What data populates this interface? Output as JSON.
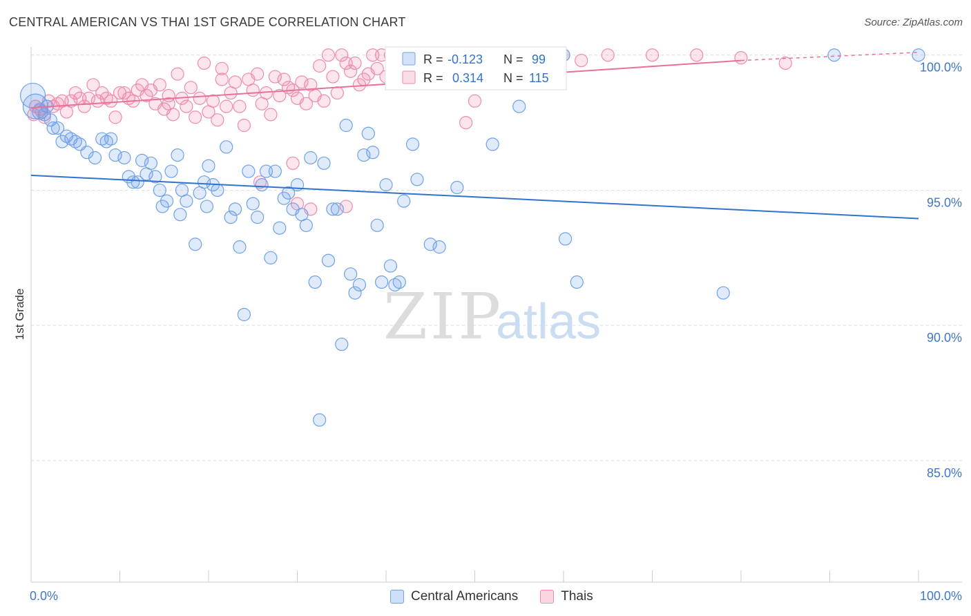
{
  "title": "CENTRAL AMERICAN VS THAI 1ST GRADE CORRELATION CHART",
  "source": "Source: ZipAtlas.com",
  "watermark": {
    "zip": "ZIP",
    "atlas": "atlas"
  },
  "colors": {
    "blue": "#6fa0e8",
    "blue_fill": "rgba(111,160,232,0.22)",
    "blue_line": "#2f72d0",
    "pink": "#f08aaa",
    "pink_fill": "rgba(240,138,170,0.22)",
    "pink_line": "#e8709a",
    "axis_text": "#3f76c8",
    "grid": "#dcdcdc"
  },
  "legend_box": {
    "rows": [
      {
        "r_label": "R = ",
        "r_value": "-0.123",
        "n_label": "N = ",
        "n_value": "99"
      },
      {
        "r_label": "R = ",
        "r_value": "0.314",
        "n_label": "N = ",
        "n_value": "115"
      }
    ]
  },
  "bottom_legend": {
    "items": [
      "Central Americans",
      "Thais"
    ]
  },
  "chart_data": {
    "type": "scatter",
    "title": "CENTRAL AMERICAN VS THAI 1ST GRADE CORRELATION CHART",
    "xlabel": "",
    "ylabel": "1st Grade",
    "xlim": [
      0,
      100
    ],
    "ylim": [
      80.5,
      100.3
    ],
    "x_tick_labels": [
      "0.0%",
      "100.0%"
    ],
    "y_ticks": [
      85,
      90,
      95,
      100
    ],
    "y_tick_labels": [
      "85.0%",
      "90.0%",
      "95.0%",
      "100.0%"
    ],
    "grid": true,
    "series": [
      {
        "name": "Central Americans",
        "trend": {
          "x": [
            0,
            100
          ],
          "y": [
            95.55,
            93.95
          ]
        },
        "points": [
          [
            0.2,
            98.5
          ],
          [
            0.5,
            98.1
          ],
          [
            1,
            97.9
          ],
          [
            1.5,
            97.8
          ],
          [
            1.8,
            98.1
          ],
          [
            2.2,
            97.6
          ],
          [
            2.5,
            97.3
          ],
          [
            3,
            97.3
          ],
          [
            3.5,
            96.8
          ],
          [
            4,
            97
          ],
          [
            4.5,
            96.9
          ],
          [
            5,
            96.8
          ],
          [
            5.5,
            96.7
          ],
          [
            6.3,
            96.4
          ],
          [
            7.2,
            96.2
          ],
          [
            8,
            96.9
          ],
          [
            8.5,
            96.8
          ],
          [
            9,
            96.9
          ],
          [
            9.5,
            96.3
          ],
          [
            10.5,
            96.2
          ],
          [
            11,
            95.5
          ],
          [
            11.5,
            95.3
          ],
          [
            12,
            95.3
          ],
          [
            12.5,
            96.1
          ],
          [
            13,
            95.6
          ],
          [
            13.5,
            96
          ],
          [
            14,
            95.5
          ],
          [
            14.5,
            95
          ],
          [
            14.8,
            94.4
          ],
          [
            15.3,
            94.6
          ],
          [
            15.8,
            95.7
          ],
          [
            16.5,
            96.3
          ],
          [
            16.8,
            94.1
          ],
          [
            17,
            95.0
          ],
          [
            17.5,
            94.6
          ],
          [
            18.5,
            93
          ],
          [
            19,
            94.9
          ],
          [
            19.5,
            95.3
          ],
          [
            19.8,
            94.4
          ],
          [
            20,
            95.9
          ],
          [
            20.5,
            95.2
          ],
          [
            21,
            95.0
          ],
          [
            22,
            96.6
          ],
          [
            22.5,
            94.0
          ],
          [
            23,
            94.3
          ],
          [
            23.5,
            92.9
          ],
          [
            24,
            90.4
          ],
          [
            24.5,
            95.7
          ],
          [
            25,
            94.5
          ],
          [
            25.5,
            94.0
          ],
          [
            26,
            95.2
          ],
          [
            26.5,
            95.7
          ],
          [
            27,
            92.5
          ],
          [
            27.5,
            95.7
          ],
          [
            28,
            93.6
          ],
          [
            28.5,
            94.7
          ],
          [
            29,
            94.9
          ],
          [
            29.5,
            94.3
          ],
          [
            30,
            95.2
          ],
          [
            30.5,
            94.1
          ],
          [
            31,
            93.7
          ],
          [
            31.5,
            96.2
          ],
          [
            32,
            91.6
          ],
          [
            32.5,
            86.5
          ],
          [
            33,
            96
          ],
          [
            33.5,
            92.4
          ],
          [
            34,
            94.3
          ],
          [
            34.5,
            94.3
          ],
          [
            35,
            89.3
          ],
          [
            35.5,
            97.4
          ],
          [
            36,
            91.9
          ],
          [
            36.5,
            91.2
          ],
          [
            37,
            91.5
          ],
          [
            37.5,
            96.3
          ],
          [
            38,
            97.1
          ],
          [
            38.5,
            96.4
          ],
          [
            39,
            93.7
          ],
          [
            39.5,
            91.6
          ],
          [
            40,
            95.2
          ],
          [
            40.5,
            92.2
          ],
          [
            41,
            91.5
          ],
          [
            41.5,
            91.6
          ],
          [
            42,
            94.6
          ],
          [
            43,
            96.7
          ],
          [
            43.5,
            95.4
          ],
          [
            45,
            93
          ],
          [
            46,
            92.9
          ],
          [
            48,
            95.1
          ],
          [
            48.5,
            100
          ],
          [
            50,
            100
          ],
          [
            50.5,
            99.3
          ],
          [
            52,
            96.7
          ],
          [
            55,
            98.1
          ],
          [
            60,
            100
          ],
          [
            60.2,
            93.2
          ],
          [
            61.5,
            91.6
          ],
          [
            78,
            91.2
          ],
          [
            90.5,
            100
          ],
          [
            100,
            100
          ]
        ],
        "sizes": {
          "0.2": "large",
          "0.5": "large"
        }
      },
      {
        "name": "Thais",
        "trend": {
          "x": [
            0,
            80
          ],
          "y": [
            98.05,
            99.8
          ],
          "dashed_to": [
            100,
            100.1
          ]
        },
        "points": [
          [
            0.3,
            97.8
          ],
          [
            0.5,
            98.1
          ],
          [
            1,
            98
          ],
          [
            1.2,
            97.9
          ],
          [
            1.5,
            97.7
          ],
          [
            2,
            98.3
          ],
          [
            2.5,
            98.1
          ],
          [
            3,
            98.2
          ],
          [
            3.5,
            98.3
          ],
          [
            4,
            97.9
          ],
          [
            4.5,
            98.3
          ],
          [
            5,
            98.6
          ],
          [
            5.5,
            98.4
          ],
          [
            6,
            98.1
          ],
          [
            6.5,
            98.4
          ],
          [
            7,
            98.9
          ],
          [
            7.5,
            98.3
          ],
          [
            8,
            98.6
          ],
          [
            8.5,
            98.4
          ],
          [
            9,
            98.3
          ],
          [
            9.5,
            97.7
          ],
          [
            10,
            98.6
          ],
          [
            10.5,
            98.6
          ],
          [
            11,
            98.4
          ],
          [
            11.5,
            98.3
          ],
          [
            12,
            98.7
          ],
          [
            12.5,
            98.9
          ],
          [
            13,
            98.5
          ],
          [
            13.5,
            98.7
          ],
          [
            14,
            98.2
          ],
          [
            14.5,
            98.9
          ],
          [
            15,
            98
          ],
          [
            15.5,
            98.2
          ],
          [
            16,
            97.8
          ],
          [
            16.5,
            99.3
          ],
          [
            17,
            98.4
          ],
          [
            17.5,
            98.1
          ],
          [
            18,
            98.8
          ],
          [
            18.5,
            97.7
          ],
          [
            19,
            98.4
          ],
          [
            19.5,
            99.7
          ],
          [
            20,
            97.9
          ],
          [
            20.5,
            98.3
          ],
          [
            21,
            97.6
          ],
          [
            21.5,
            99.1
          ],
          [
            22,
            98.1
          ],
          [
            22.5,
            98.6
          ],
          [
            23,
            99
          ],
          [
            23.5,
            98.1
          ],
          [
            24,
            97.4
          ],
          [
            24.5,
            99.1
          ],
          [
            25,
            98.7
          ],
          [
            25.5,
            99.3
          ],
          [
            26,
            98.2
          ],
          [
            26.5,
            98.6
          ],
          [
            27,
            97.8
          ],
          [
            27.5,
            99.2
          ],
          [
            28,
            98.5
          ],
          [
            28.5,
            99.1
          ],
          [
            29,
            98.8
          ],
          [
            29.5,
            98.7
          ],
          [
            30,
            98.4
          ],
          [
            30.5,
            99
          ],
          [
            31,
            98.2
          ],
          [
            31.5,
            98.9
          ],
          [
            32,
            98.5
          ],
          [
            32.5,
            99.6
          ],
          [
            33,
            98.3
          ],
          [
            33.5,
            100
          ],
          [
            34,
            99.2
          ],
          [
            34.5,
            98.6
          ],
          [
            35,
            100
          ],
          [
            35.5,
            99.7
          ],
          [
            36,
            99.4
          ],
          [
            36.5,
            99.7
          ],
          [
            37,
            98.9
          ],
          [
            37.5,
            99.1
          ],
          [
            38,
            99.3
          ],
          [
            38.5,
            100
          ],
          [
            39,
            99.5
          ],
          [
            39.5,
            100
          ],
          [
            40,
            99.2
          ],
          [
            40.5,
            100
          ],
          [
            41,
            99.6
          ],
          [
            42,
            99.3
          ],
          [
            43,
            99.5
          ],
          [
            44,
            99.6
          ],
          [
            45,
            100
          ],
          [
            46,
            99.4
          ],
          [
            47,
            99.1
          ],
          [
            48,
            99.7
          ],
          [
            49,
            97.5
          ],
          [
            50,
            98.3
          ],
          [
            51,
            99.3
          ],
          [
            52,
            99.6
          ],
          [
            53,
            99.5
          ],
          [
            54,
            100
          ],
          [
            55,
            99.7
          ],
          [
            56,
            99.5
          ],
          [
            57,
            100
          ],
          [
            58,
            99.9
          ],
          [
            60,
            100
          ],
          [
            62,
            99.8
          ],
          [
            65,
            100
          ],
          [
            70,
            100
          ],
          [
            75,
            100
          ],
          [
            80,
            99.9
          ],
          [
            85,
            99.7
          ],
          [
            15.5,
            98.5
          ],
          [
            21.5,
            99.5
          ],
          [
            25.8,
            95.3
          ],
          [
            29.5,
            96.0
          ],
          [
            30,
            94.5
          ],
          [
            31.5,
            94.3
          ],
          [
            35.5,
            94.4
          ]
        ]
      }
    ]
  }
}
